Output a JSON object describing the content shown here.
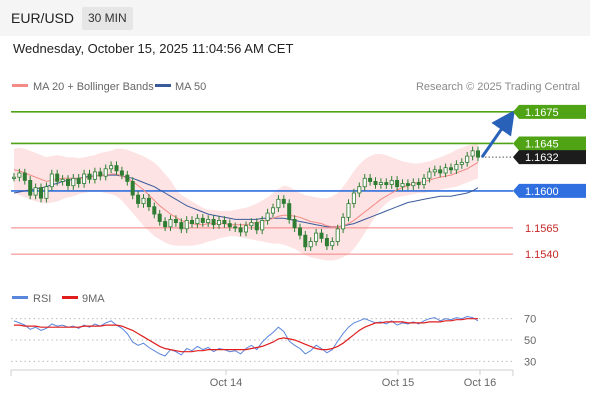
{
  "header": {
    "symbol": "EUR/USD",
    "timeframe": "30 MIN",
    "datetime": "Wednesday, October 15, 2025 11:04:56 AM CET"
  },
  "legend": {
    "ma20": "MA 20 + Bollinger Bands",
    "ma50": "MA 50",
    "credit": "Research © 2025 Trading Central"
  },
  "colors": {
    "candle": "#2e7d32",
    "ma20": "#f48a85",
    "ma50": "#3a5b9a",
    "bands": "#fcdada",
    "resistance": "#4fa315",
    "pivot": "#2f6fe0",
    "support": "#f48080",
    "rsi": "#5b86dd",
    "rsi_ma": "#e01e1e",
    "arrow": "#2a61b8"
  },
  "chart_data": {
    "type": "line",
    "instrument": "EUR/USD",
    "interval": "30 MIN",
    "ylim": [
      1.1525,
      1.169
    ],
    "x_ticks": [
      "Oct 14",
      "Oct 15",
      "Oct 16"
    ],
    "levels": [
      {
        "value": 1.1675,
        "label": "1.1675",
        "kind": "resistance"
      },
      {
        "value": 1.1645,
        "label": "1.1645",
        "kind": "resistance"
      },
      {
        "value": 1.1632,
        "label": "1.1632",
        "kind": "last"
      },
      {
        "value": 1.16,
        "label": "1.1600",
        "kind": "pivot"
      },
      {
        "value": 1.1565,
        "label": "1.1565",
        "kind": "support"
      },
      {
        "value": 1.154,
        "label": "1.1540",
        "kind": "support"
      }
    ],
    "price": [
      1.1613,
      1.1617,
      1.161,
      1.1596,
      1.1603,
      1.1593,
      1.1604,
      1.1616,
      1.1609,
      1.1611,
      1.1605,
      1.1612,
      1.1607,
      1.1616,
      1.1611,
      1.1618,
      1.1614,
      1.1621,
      1.1624,
      1.1619,
      1.1615,
      1.1609,
      1.1596,
      1.1588,
      1.1593,
      1.1585,
      1.1578,
      1.1571,
      1.1566,
      1.1573,
      1.157,
      1.1564,
      1.1572,
      1.1569,
      1.1574,
      1.157,
      1.1573,
      1.1568,
      1.1572,
      1.1569,
      1.1566,
      1.1565,
      1.1561,
      1.1567,
      1.157,
      1.1563,
      1.1572,
      1.1579,
      1.1584,
      1.1592,
      1.1588,
      1.1573,
      1.1565,
      1.1558,
      1.1547,
      1.1552,
      1.156,
      1.1555,
      1.1548,
      1.1552,
      1.1564,
      1.1575,
      1.1588,
      1.1598,
      1.1604,
      1.1612,
      1.1609,
      1.1606,
      1.1608,
      1.1606,
      1.161,
      1.1604,
      1.1607,
      1.1605,
      1.1608,
      1.1606,
      1.1612,
      1.1618,
      1.162,
      1.1617,
      1.1622,
      1.162,
      1.1625,
      1.1627,
      1.1633,
      1.1638,
      1.1632
    ],
    "ma20": [
      1.162,
      1.1619,
      1.1617,
      1.1615,
      1.1613,
      1.1611,
      1.1609,
      1.161,
      1.1611,
      1.1612,
      1.1612,
      1.1612,
      1.1612,
      1.1612,
      1.1613,
      1.1614,
      1.1615,
      1.1615,
      1.1616,
      1.1616,
      1.1614,
      1.1612,
      1.1609,
      1.1605,
      1.1601,
      1.1596,
      1.1591,
      1.1586,
      1.1582,
      1.1578,
      1.1575,
      1.1572,
      1.157,
      1.1569,
      1.1568,
      1.1568,
      1.1569,
      1.1569,
      1.1569,
      1.1569,
      1.1568,
      1.1568,
      1.1568,
      1.1568,
      1.1569,
      1.157,
      1.1571,
      1.1572,
      1.1574,
      1.1576,
      1.1577,
      1.1577,
      1.1576,
      1.1575,
      1.1573,
      1.1571,
      1.157,
      1.1569,
      1.1567,
      1.1566,
      1.1566,
      1.1567,
      1.1569,
      1.1572,
      1.1576,
      1.158,
      1.1584,
      1.1588,
      1.1592,
      1.1595,
      1.1598,
      1.1601,
      1.1603,
      1.1605,
      1.1607,
      1.1608,
      1.1609,
      1.161,
      1.1612,
      1.1613,
      1.1614,
      1.1615,
      1.1617,
      1.1619,
      1.1621,
      1.1624,
      1.1627
    ],
    "ma50": [
      1.1598,
      1.1599,
      1.16,
      1.1601,
      1.1602,
      1.1603,
      1.1604,
      1.1606,
      1.1607,
      1.1609,
      1.161,
      1.1611,
      1.1612,
      1.1613,
      1.1614,
      1.1614,
      1.1615,
      1.1615,
      1.1615,
      1.1615,
      1.1614,
      1.1613,
      1.1612,
      1.161,
      1.1608,
      1.1606,
      1.1604,
      1.1601,
      1.1598,
      1.1595,
      1.1592,
      1.1589,
      1.1586,
      1.1584,
      1.1582,
      1.158,
      1.1578,
      1.1577,
      1.1576,
      1.1575,
      1.1574,
      1.1573,
      1.1573,
      1.1573,
      1.1573,
      1.1573,
      1.1574,
      1.1574,
      1.1574,
      1.1574,
      1.1574,
      1.1573,
      1.1572,
      1.1571,
      1.157,
      1.1569,
      1.1568,
      1.1567,
      1.1566,
      1.1566,
      1.1566,
      1.1567,
      1.1568,
      1.1569,
      1.1571,
      1.1573,
      1.1575,
      1.1577,
      1.1579,
      1.1581,
      1.1583,
      1.1585,
      1.1587,
      1.1589,
      1.159,
      1.1591,
      1.1592,
      1.1593,
      1.1594,
      1.1595,
      1.1595,
      1.1595,
      1.1596,
      1.1597,
      1.1598,
      1.16,
      1.1603
    ],
    "bb_upper": [
      1.164,
      1.1641,
      1.164,
      1.1638,
      1.1636,
      1.1634,
      1.1632,
      1.1633,
      1.1634,
      1.1633,
      1.1632,
      1.1632,
      1.1631,
      1.1632,
      1.1633,
      1.1634,
      1.1636,
      1.1637,
      1.1638,
      1.164,
      1.164,
      1.1639,
      1.1637,
      1.1635,
      1.1633,
      1.163,
      1.1627,
      1.1622,
      1.1616,
      1.161,
      1.1602,
      1.1596,
      1.1593,
      1.159,
      1.1587,
      1.1584,
      1.1582,
      1.1582,
      1.1581,
      1.1581,
      1.1581,
      1.1582,
      1.1583,
      1.1584,
      1.1586,
      1.1588,
      1.1591,
      1.1594,
      1.1598,
      1.1602,
      1.1605,
      1.1604,
      1.1601,
      1.1598,
      1.1596,
      1.1595,
      1.1594,
      1.1593,
      1.1593,
      1.1595,
      1.1598,
      1.1604,
      1.1611,
      1.1619,
      1.1625,
      1.163,
      1.1633,
      1.1635,
      1.1635,
      1.1634,
      1.1632,
      1.163,
      1.1628,
      1.1627,
      1.1626,
      1.1626,
      1.1627,
      1.1628,
      1.163,
      1.1632,
      1.1634,
      1.1636,
      1.1639,
      1.1641,
      1.1643,
      1.1644,
      1.1645
    ],
    "bb_lower": [
      1.1598,
      1.1596,
      1.1594,
      1.1592,
      1.159,
      1.1589,
      1.1588,
      1.1589,
      1.159,
      1.1592,
      1.1594,
      1.1595,
      1.1597,
      1.1598,
      1.1599,
      1.1599,
      1.1599,
      1.1598,
      1.1597,
      1.1595,
      1.1591,
      1.1585,
      1.1579,
      1.1573,
      1.1567,
      1.1562,
      1.1557,
      1.1554,
      1.1551,
      1.1549,
      1.1548,
      1.1548,
      1.1548,
      1.1548,
      1.1549,
      1.155,
      1.1552,
      1.1553,
      1.1555,
      1.1556,
      1.1557,
      1.1557,
      1.1556,
      1.1555,
      1.1554,
      1.1553,
      1.1552,
      1.1551,
      1.155,
      1.155,
      1.1549,
      1.1547,
      1.1545,
      1.1542,
      1.1539,
      1.1537,
      1.1536,
      1.1535,
      1.1534,
      1.1534,
      1.1535,
      1.1537,
      1.154,
      1.1545,
      1.1552,
      1.156,
      1.1568,
      1.1576,
      1.1583,
      1.1588,
      1.1592,
      1.1594,
      1.1595,
      1.1596,
      1.1597,
      1.1598,
      1.1598,
      1.1599,
      1.16,
      1.1601,
      1.1602,
      1.1603,
      1.1604,
      1.1606,
      1.1608,
      1.161,
      1.1612
    ],
    "projection": {
      "from": 1.1632,
      "to": 1.1675
    },
    "rsi_panel": {
      "ylim": [
        20,
        80
      ],
      "ticks": [
        "70",
        "50",
        "30"
      ],
      "legend": [
        "RSI",
        "9MA"
      ],
      "rsi": [
        68,
        66,
        64,
        60,
        62,
        59,
        61,
        65,
        63,
        64,
        62,
        63,
        61,
        64,
        62,
        65,
        63,
        66,
        68,
        64,
        61,
        56,
        48,
        45,
        47,
        43,
        40,
        37,
        35,
        41,
        39,
        36,
        42,
        40,
        44,
        41,
        43,
        39,
        42,
        41,
        39,
        40,
        37,
        42,
        45,
        41,
        48,
        53,
        57,
        62,
        58,
        49,
        45,
        42,
        37,
        40,
        45,
        42,
        38,
        41,
        49,
        56,
        62,
        66,
        68,
        70,
        68,
        66,
        67,
        65,
        68,
        64,
        66,
        65,
        67,
        65,
        68,
        70,
        71,
        68,
        70,
        69,
        71,
        70,
        72,
        71,
        68
      ],
      "ma": [
        64,
        64,
        63,
        63,
        63,
        62,
        62,
        62,
        62,
        62,
        62,
        62,
        62,
        63,
        63,
        63,
        63,
        64,
        64,
        64,
        63,
        61,
        59,
        56,
        53,
        50,
        47,
        44,
        42,
        41,
        40,
        39,
        39,
        39,
        40,
        40,
        41,
        41,
        41,
        41,
        41,
        41,
        41,
        41,
        42,
        43,
        44,
        46,
        48,
        51,
        52,
        51,
        50,
        48,
        46,
        44,
        42,
        41,
        41,
        42,
        44,
        47,
        51,
        55,
        59,
        62,
        64,
        66,
        66,
        67,
        67,
        67,
        67,
        66,
        66,
        66,
        66,
        67,
        67,
        67,
        68,
        68,
        69,
        69,
        70,
        70,
        70
      ]
    }
  }
}
